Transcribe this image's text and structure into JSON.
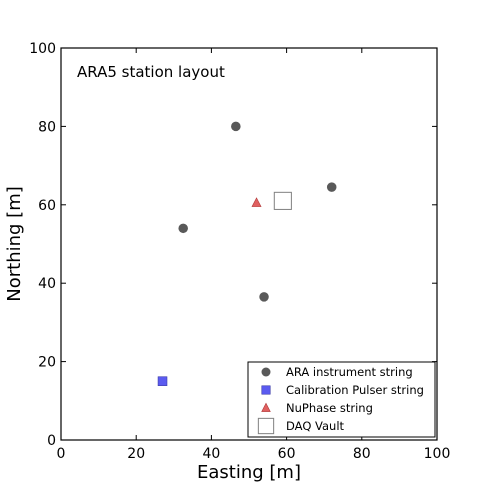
{
  "chart_data": {
    "type": "scatter",
    "annotation": "ARA5 station layout",
    "xlabel": "Easting [m]",
    "ylabel": "Northing [m]",
    "xlim": [
      0,
      100
    ],
    "ylim": [
      0,
      100
    ],
    "xticks": [
      "0",
      "20",
      "40",
      "60",
      "80",
      "100"
    ],
    "yticks": [
      "0",
      "20",
      "40",
      "60",
      "80",
      "100"
    ],
    "grid": false,
    "legend_position": "bottom-right",
    "series": [
      {
        "name": "ARA instrument string",
        "marker": "circle",
        "color": "#595959",
        "points": [
          {
            "x": 46.5,
            "y": 80
          },
          {
            "x": 72,
            "y": 64.5
          },
          {
            "x": 32.5,
            "y": 54
          },
          {
            "x": 54,
            "y": 36.5
          }
        ]
      },
      {
        "name": "Calibration Pulser string",
        "marker": "square",
        "color": "#5b5bf0",
        "points": [
          {
            "x": 27,
            "y": 15
          }
        ]
      },
      {
        "name": "NuPhase string",
        "marker": "triangle",
        "color": "#e06060",
        "points": [
          {
            "x": 52,
            "y": 60.5
          }
        ]
      },
      {
        "name": "DAQ Vault",
        "marker": "open-square",
        "color": "#808080",
        "points": [
          {
            "x": 59,
            "y": 61
          }
        ]
      }
    ]
  }
}
